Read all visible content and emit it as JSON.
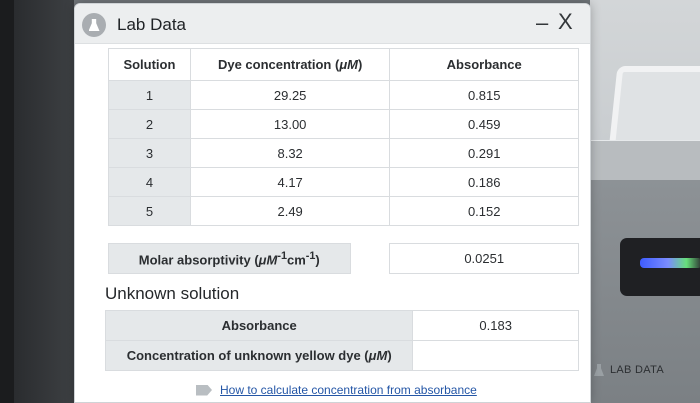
{
  "window": {
    "title": "Lab Data",
    "minimize_glyph": "–",
    "close_glyph": "X",
    "app_icon": "flask-icon"
  },
  "data_table": {
    "headers": {
      "solution": "Solution",
      "dye_prefix": "Dye concentration (",
      "dye_unit": "μM",
      "dye_suffix": ")",
      "absorbance": "Absorbance"
    },
    "rows": [
      {
        "solution": "1",
        "concentration": "29.25",
        "absorbance": "0.815"
      },
      {
        "solution": "2",
        "concentration": "13.00",
        "absorbance": "0.459"
      },
      {
        "solution": "3",
        "concentration": "8.32",
        "absorbance": "0.291"
      },
      {
        "solution": "4",
        "concentration": "4.17",
        "absorbance": "0.186"
      },
      {
        "solution": "5",
        "concentration": "2.49",
        "absorbance": "0.152"
      }
    ]
  },
  "molar": {
    "label_prefix": "Molar absorptivity (",
    "label_unit": "μM",
    "label_sup1": "-1",
    "label_cm": "cm",
    "label_sup2": "-1",
    "label_suffix": ")",
    "value": "0.0251"
  },
  "unknown": {
    "heading": "Unknown solution",
    "absorbance_label": "Absorbance",
    "absorbance_value": "0.183",
    "concentration_prefix": "Concentration of unknown yellow dye (",
    "concentration_unit": "μM",
    "concentration_suffix": ")",
    "concentration_value": ""
  },
  "help": {
    "link_text": "How to calculate concentration from absorbance",
    "icon": "tag-icon"
  },
  "side_panel": {
    "label": "LAB DATA",
    "icon": "flask-icon"
  },
  "colors": {
    "link": "#2456a6",
    "label_cell": "#e5e8ea",
    "titlebar": "#eceeef"
  }
}
